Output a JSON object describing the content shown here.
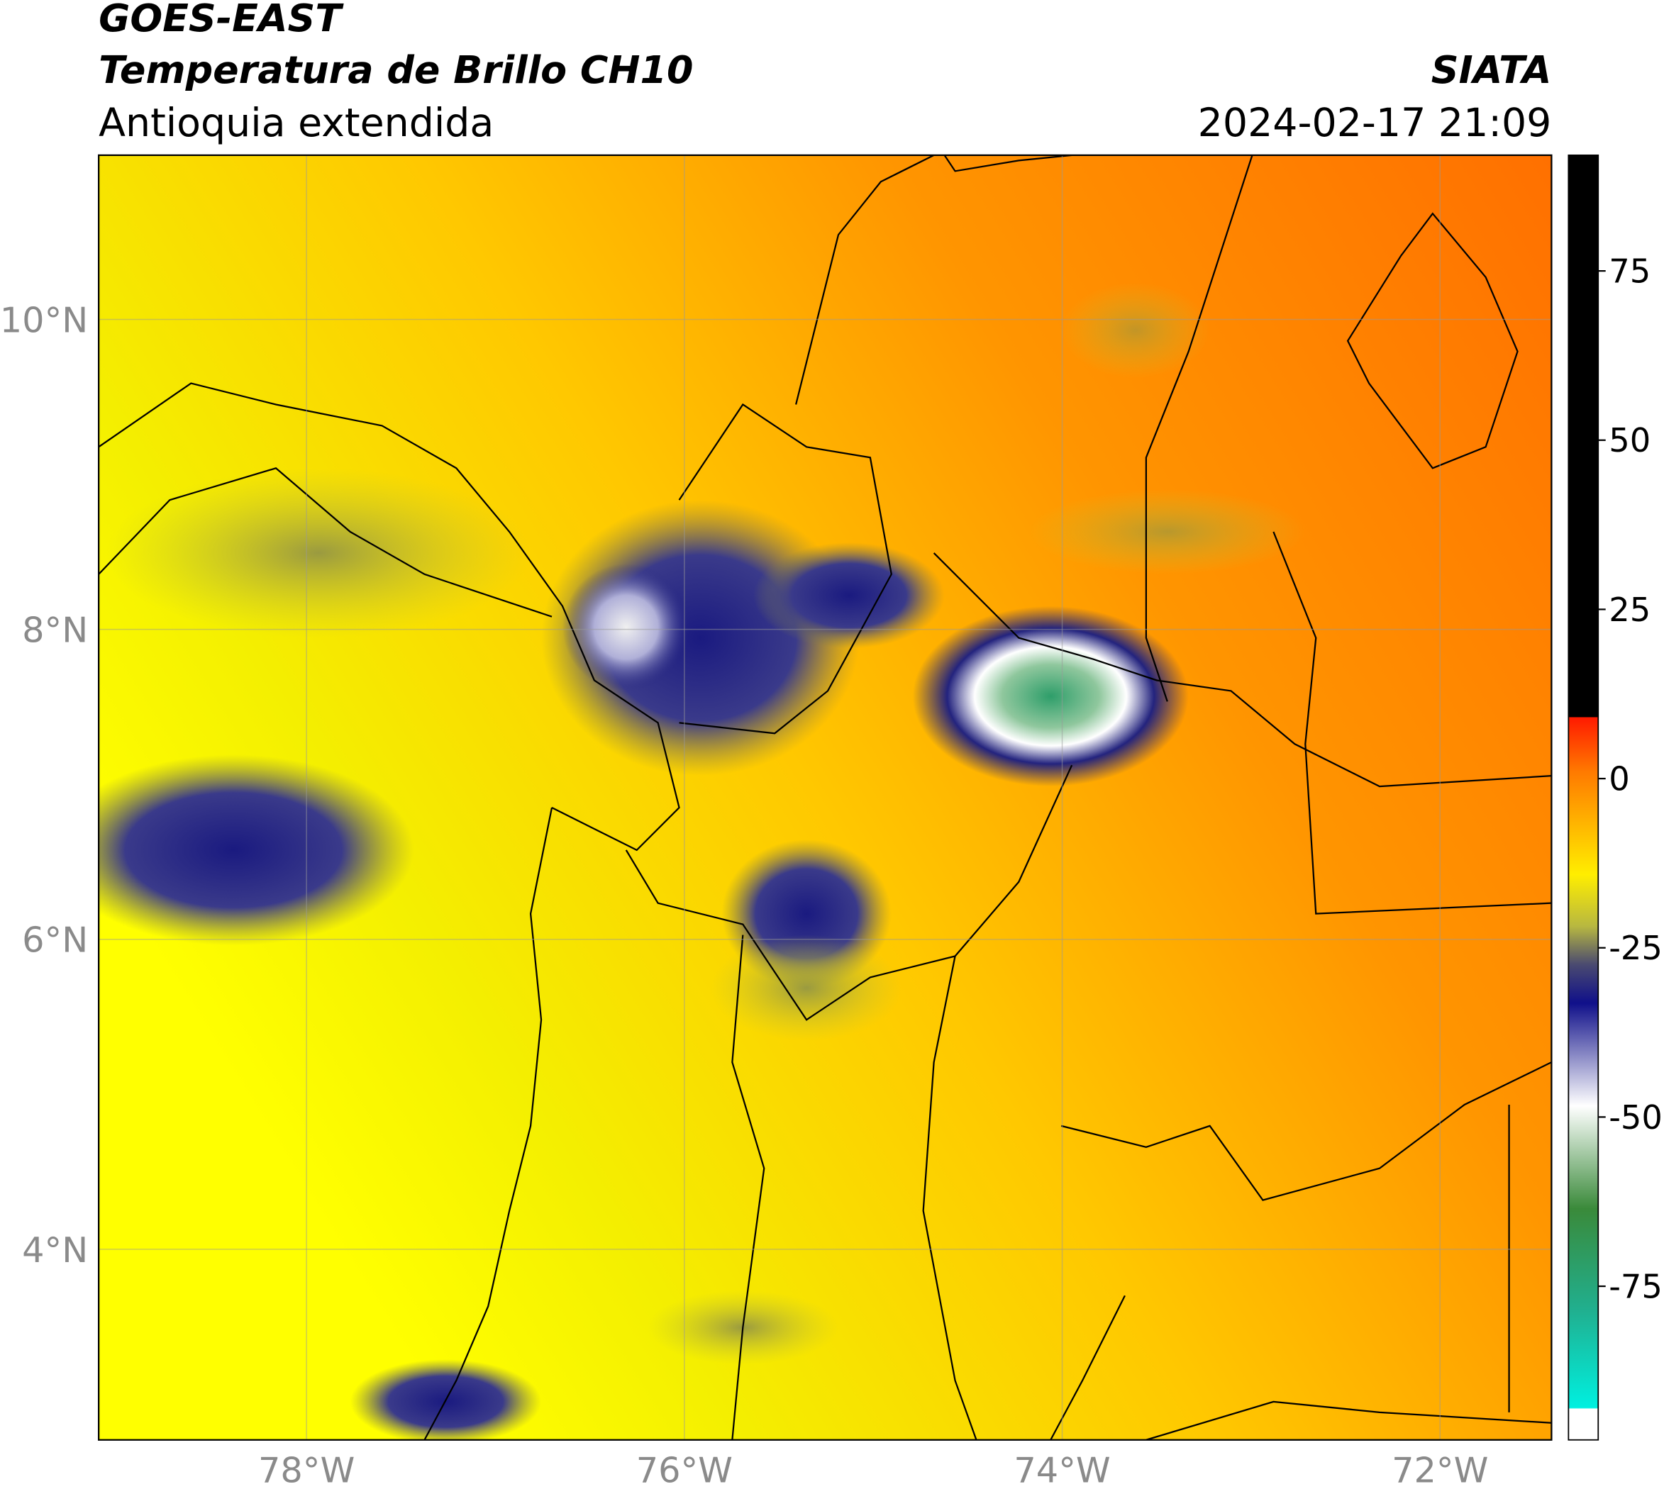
{
  "header": {
    "source": "GOES-EAST",
    "title": "Temperatura de Brillo CH10",
    "region": "Antioquia extendida",
    "agency": "SIATA",
    "datetime": "2024-02-17 21:09"
  },
  "map": {
    "xlim": [
      -79.1,
      -71.41
    ],
    "ylim": [
      2.77,
      11.06
    ],
    "lon_ticks": [
      {
        "value": -78,
        "label": "78°W"
      },
      {
        "value": -76,
        "label": "76°W"
      },
      {
        "value": -74,
        "label": "74°W"
      },
      {
        "value": -72,
        "label": "72°W"
      }
    ],
    "lat_ticks": [
      {
        "value": 10,
        "label": "10°N"
      },
      {
        "value": 8,
        "label": "8°N"
      },
      {
        "value": 6,
        "label": "6°N"
      },
      {
        "value": 4,
        "label": "4°N"
      }
    ]
  },
  "colorbar": {
    "lim": [
      -97.7,
      92.1
    ],
    "ticks": [
      75,
      50,
      25,
      0,
      -25,
      -50,
      -75
    ]
  }
}
